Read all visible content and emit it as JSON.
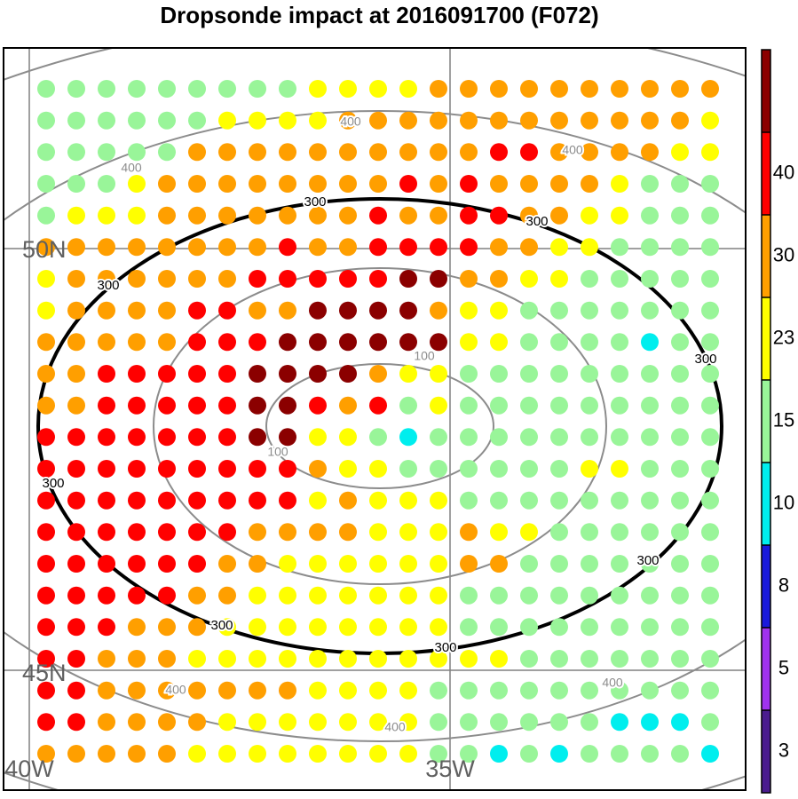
{
  "title": "Dropsonde impact at 2016091700 (F072)",
  "map": {
    "lat_labels": [
      "50N",
      "45N"
    ],
    "lon_labels": [
      "40W",
      "35W"
    ],
    "gridline_color": "#808080",
    "contours": [
      {
        "label": "100",
        "color": "#8c8c8c"
      },
      {
        "label": "300",
        "color": "#000000"
      },
      {
        "label": "400",
        "color": "#8c8c8c"
      }
    ]
  },
  "colorbar": {
    "labels": [
      "3",
      "5",
      "8",
      "10",
      "15",
      "23",
      "30",
      "40"
    ],
    "bins": [
      {
        "color": "#4b1c8f"
      },
      {
        "color": "#a033ee"
      },
      {
        "color": "#1a1adb"
      },
      {
        "color": "#00eeee"
      },
      {
        "color": "#99f599"
      },
      {
        "color": "#ffff00"
      },
      {
        "color": "#ff9f00"
      },
      {
        "color": "#ff0000"
      },
      {
        "color": "#8b0000"
      }
    ]
  },
  "chart_data": {
    "type": "scatter",
    "title": "Dropsonde impact at 2016091700 (F072)",
    "color_levels": [
      3,
      5,
      8,
      10,
      15,
      23,
      30,
      40
    ],
    "legend_placement": "right",
    "grid": true,
    "category_codes": {
      "C": "8-10",
      "G": "10-15",
      "Y": "15-23",
      "O": "23-30",
      "R": "30-40",
      "D": ">40"
    },
    "rows": [
      "GGGGGGGGGYYYYOOOOOOOOOO",
      "GGGGGGYYYYOOOOOOOOOOOOY",
      "GGGGGOOOOOOOOOORROOOOYY",
      "GGGYOOOOOOOOROROOOOYGGG",
      "GYYYOOOOOOOROORROOYYGGG",
      "OOOOOOOOROORRRROOYYGGGG",
      "YOOOOOORRRRRDDOOYYGGGGG",
      "YOOOORROODDDDOYYGGGGGGG",
      "OOOOORRRDDDDDDYYGGGGCGG",
      "OORRRRRDDDDOYYGGGGGGGGG",
      "OORRRRRDDRORGYGGGGGGGGG",
      "RRRRRRRDDYYGCGGGGGGGGGG",
      "RRRRRRRRROYYGGGGGGYYGGG",
      "RRRRRRRRRYOYYYGGGGGGGGG",
      "RRRRRRROOOOYYYOYYGGGGGG",
      "RRRRRROOYYYYYYOOGGGGGGG",
      "RRRRROOYYYYYYYGGGGGGGGG",
      "RRROOOYYYYYYYYGGGGGGGGG",
      "RROOOYYYYYYYYYYYGGGGGGG",
      "RROOOOOOOYYYYGGGGGGGGGG",
      "RROOOOYYYYYYYGGGGGGCCCG",
      "OOOOOYYYYYYYYGGCGCGGGGC"
    ]
  }
}
